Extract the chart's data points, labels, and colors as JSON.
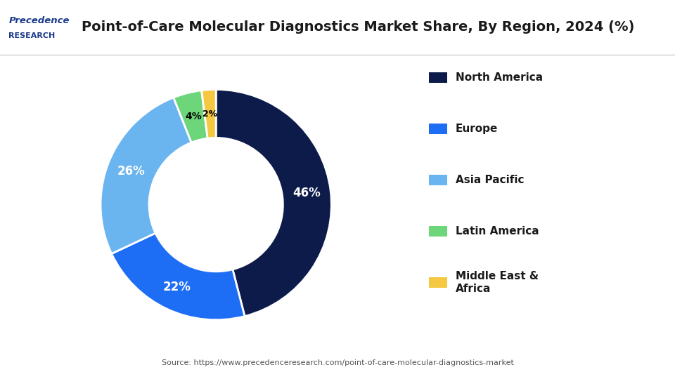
{
  "title": "Point-of-Care Molecular Diagnostics Market Share, By Region, 2024 (%)",
  "slices": [
    46,
    22,
    26,
    4,
    2
  ],
  "labels": [
    "North America",
    "Europe",
    "Asia Pacific",
    "Latin America",
    "Middle East &\nAfrica"
  ],
  "colors": [
    "#0d1b4b",
    "#1e6ef5",
    "#6ab4f0",
    "#6ed67a",
    "#f5c842"
  ],
  "pct_labels": [
    "46%",
    "22%",
    "26%",
    "4%",
    "2%"
  ],
  "source": "Source: https://www.precedenceresearch.com/point-of-care-molecular-diagnostics-market",
  "background_color": "#ffffff",
  "wedge_text_colors": [
    "white",
    "white",
    "white",
    "black",
    "black"
  ],
  "start_angle": 90,
  "donut_width": 0.42
}
